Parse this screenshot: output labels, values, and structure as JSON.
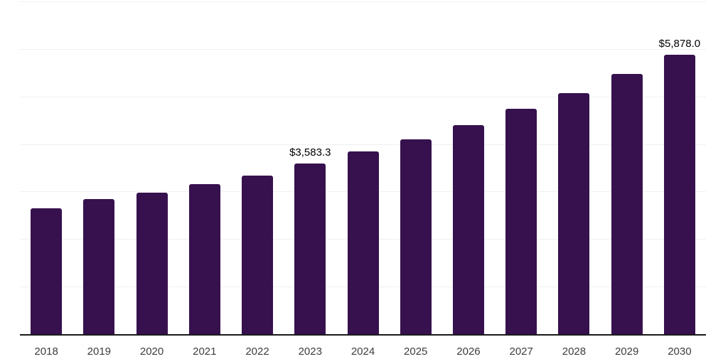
{
  "chart_data": {
    "type": "bar",
    "title": "",
    "xlabel": "",
    "ylabel": "",
    "categories": [
      "2018",
      "2019",
      "2020",
      "2021",
      "2022",
      "2023",
      "2024",
      "2025",
      "2026",
      "2027",
      "2028",
      "2029",
      "2030"
    ],
    "values": [
      2650.0,
      2845.0,
      2980.0,
      3155.0,
      3340.0,
      3583.3,
      3840.0,
      4100.0,
      4400.0,
      4735.0,
      5070.0,
      5468.0,
      5878.0
    ],
    "value_labels": {
      "2023": "$3,583.3",
      "2030": "$5,878.0"
    },
    "ylim": [
      0,
      7000
    ],
    "gridline_interval": 1000,
    "grid": true,
    "legend": "none",
    "y_axis_labels_visible": false,
    "colors": {
      "bar": "#36114E",
      "background": "#ffffff",
      "gridline": "#f0f0f0",
      "axis_line": "#1a1a1a",
      "tick_label": "#3d3d3d",
      "value_label": "#000000"
    }
  }
}
